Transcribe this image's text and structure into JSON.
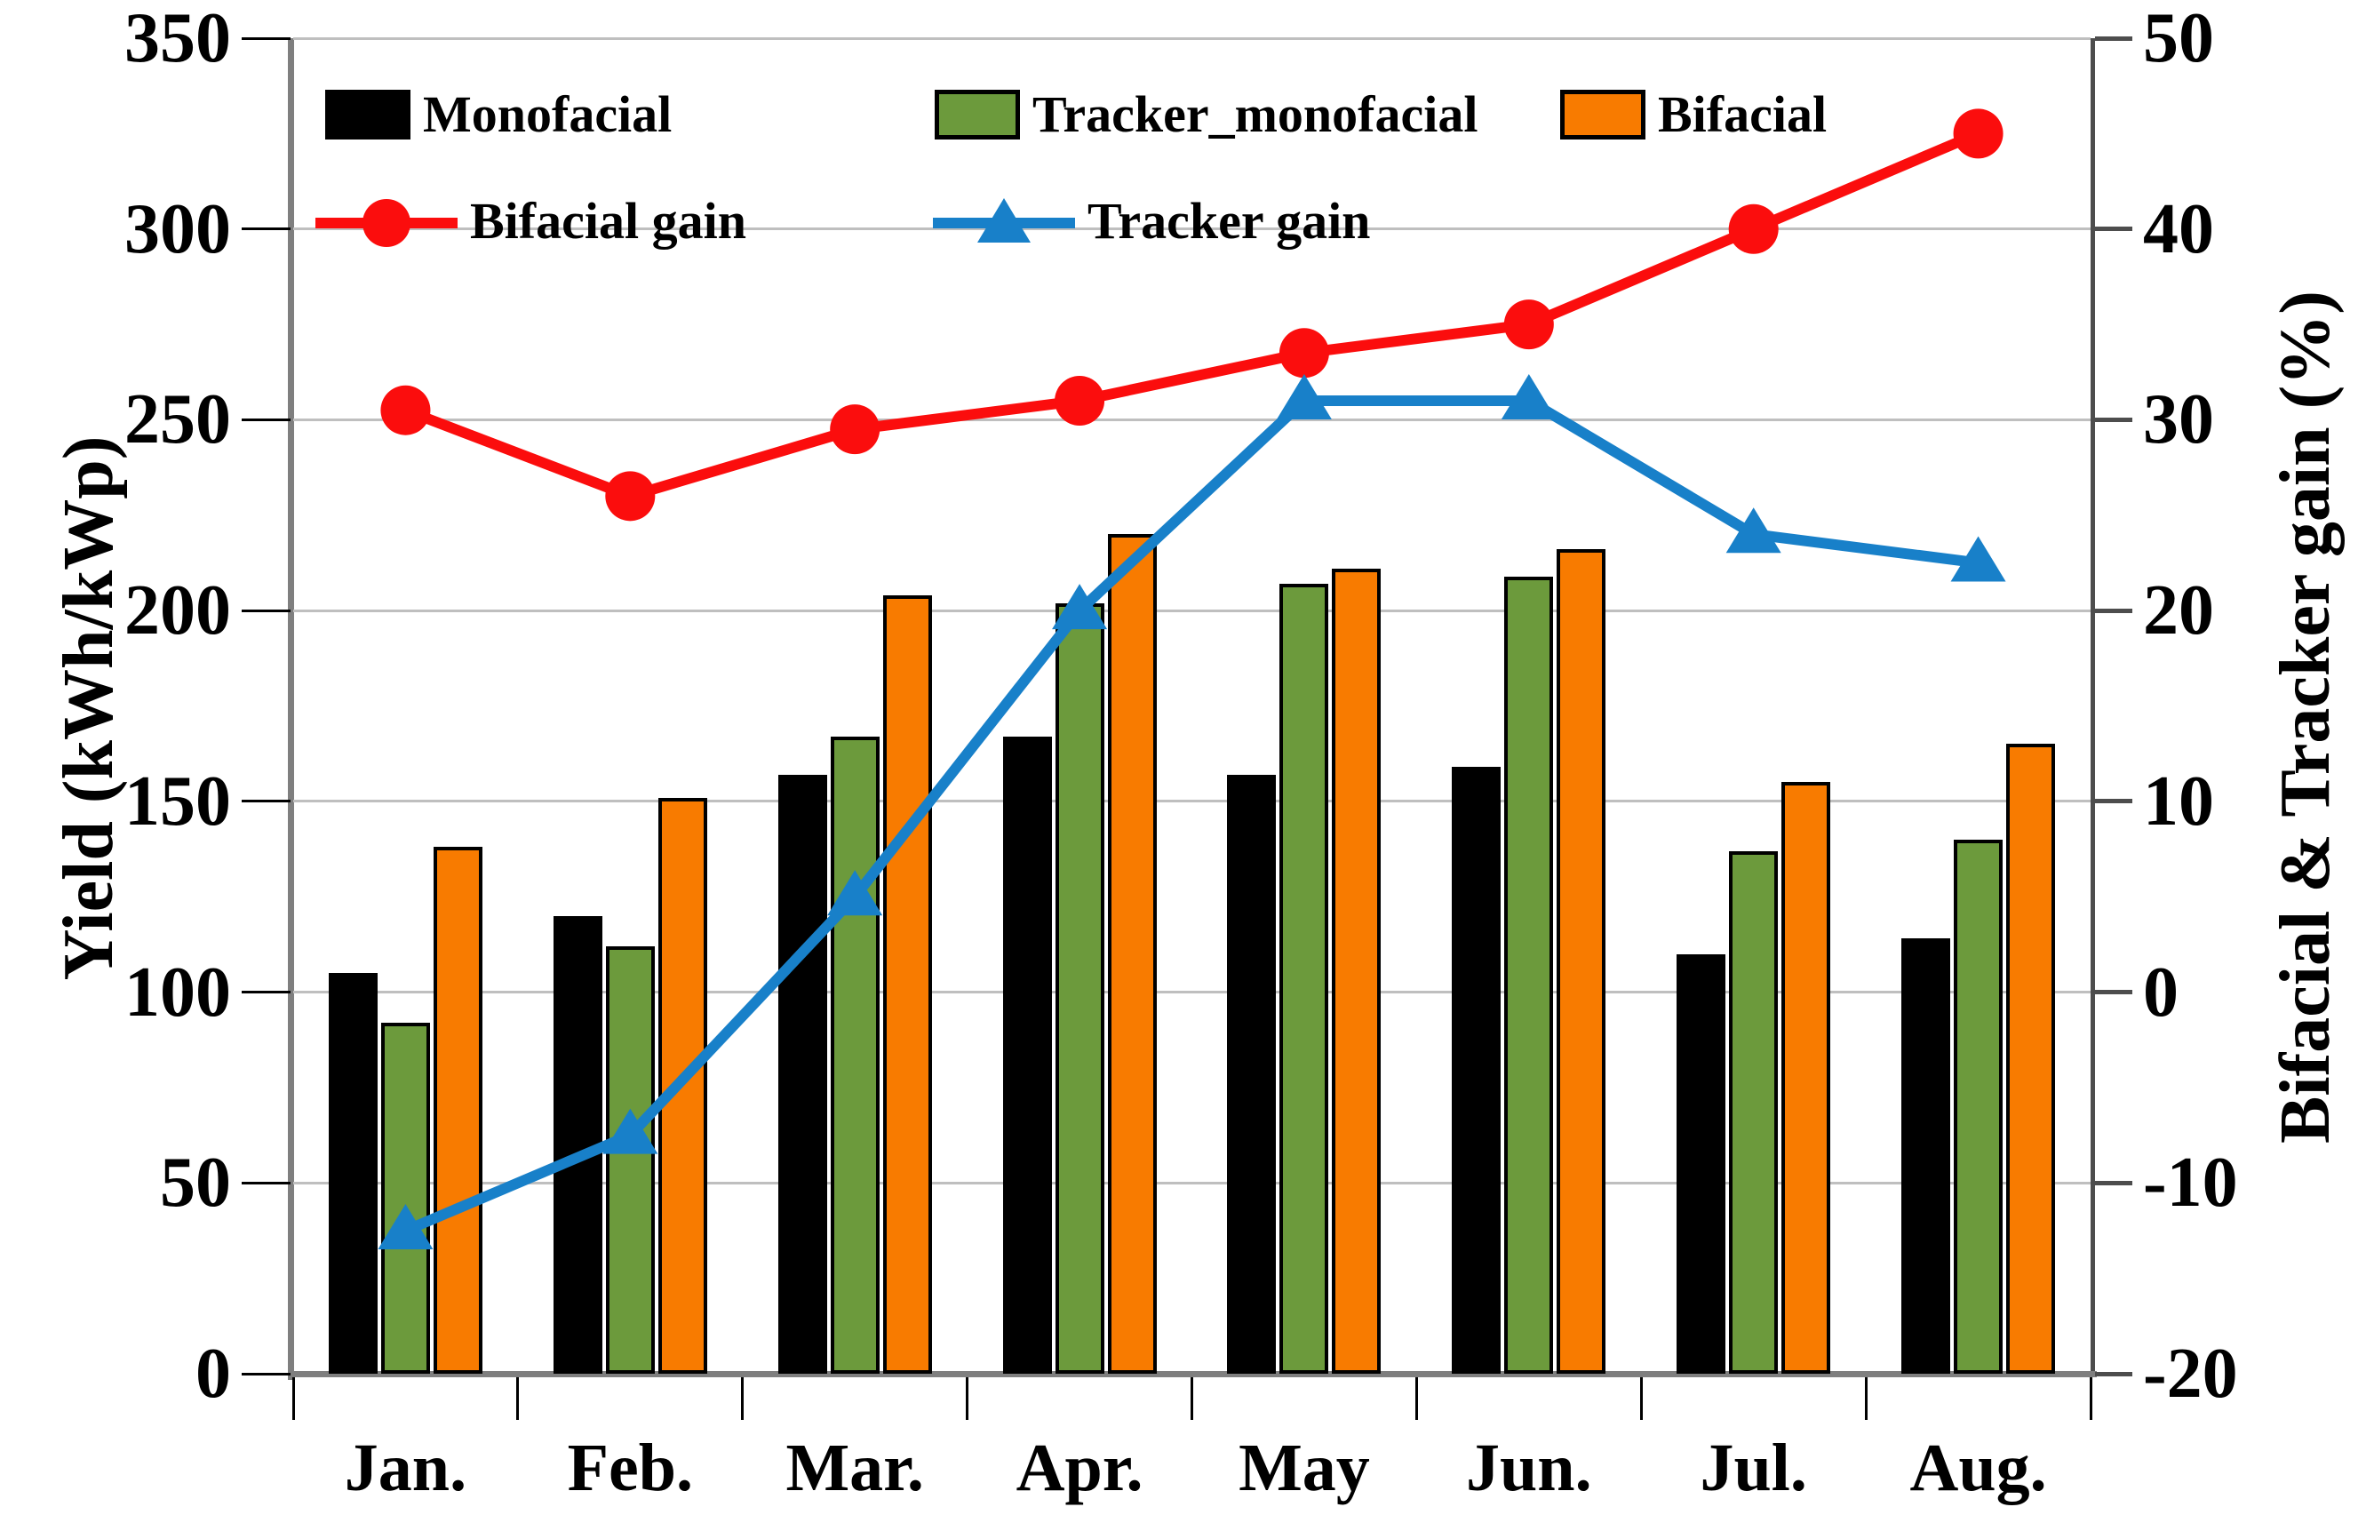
{
  "chart_data": {
    "type": "bar+line-combo",
    "categories": [
      "Jan.",
      "Feb.",
      "Mar.",
      "Apr.",
      "May",
      "Jun.",
      "Jul.",
      "Aug."
    ],
    "bar_series": [
      {
        "name": "Monofacial",
        "color": "#000000",
        "values": [
          105,
          120,
          157,
          167,
          157,
          159,
          110,
          114
        ]
      },
      {
        "name": "Tracker_monofacial",
        "color": "#6c9a3c",
        "values": [
          92,
          112,
          167,
          202,
          207,
          209,
          137,
          140
        ]
      },
      {
        "name": "Bifacial",
        "color": "#f87b00",
        "values": [
          138,
          151,
          204,
          220,
          211,
          216,
          155,
          165
        ]
      }
    ],
    "line_series": [
      {
        "name": "Bifacial gain",
        "color": "#fb0d0d",
        "marker": "circle",
        "axis": "right",
        "values": [
          30.5,
          26,
          29.5,
          31,
          33.5,
          35,
          40,
          45
        ]
      },
      {
        "name": "Tracker gain",
        "color": "#1880c9",
        "marker": "triangle",
        "axis": "right",
        "values": [
          -12.5,
          -7.5,
          5,
          20,
          31,
          31,
          24,
          22.5
        ]
      }
    ],
    "left_axis": {
      "title": "Yield (kWh/kWp)",
      "min": 0,
      "max": 350,
      "ticks": [
        350,
        300,
        250,
        200,
        150,
        100,
        50,
        0
      ]
    },
    "right_axis": {
      "title": "Bifacial & Tracker gain (%)",
      "min": -20,
      "max": 50,
      "ticks": [
        50,
        40,
        30,
        20,
        10,
        0,
        -10,
        -20
      ]
    },
    "legend": {
      "bars": [
        {
          "label": "Monofacial",
          "color": "#000000"
        },
        {
          "label": "Tracker_monofacial",
          "color": "#6c9a3c"
        },
        {
          "label": "Bifacial",
          "color": "#f87b00"
        }
      ],
      "lines": [
        {
          "label": "Bifacial gain",
          "color": "#fb0d0d",
          "marker": "circle"
        },
        {
          "label": "Tracker gain",
          "color": "#1880c9",
          "marker": "triangle"
        }
      ]
    },
    "layout_hints": {
      "grid": "horizontal-only",
      "legend_position": "top-left-inside",
      "background": "#ffffff"
    }
  }
}
